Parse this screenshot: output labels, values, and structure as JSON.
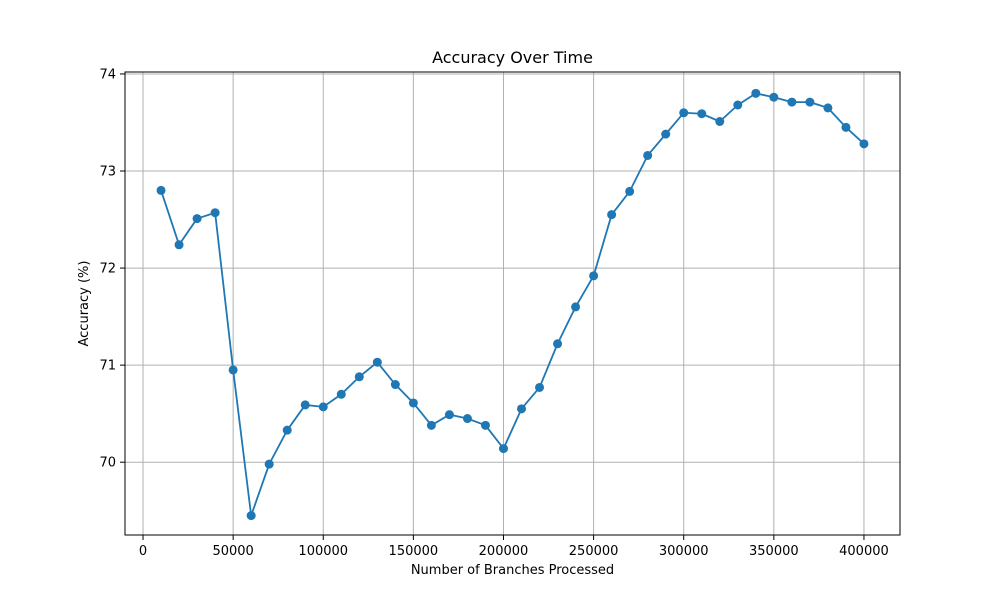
{
  "chart_data": {
    "type": "line",
    "title": "Accuracy Over Time",
    "xlabel": "Number of Branches Processed",
    "ylabel": "Accuracy (%)",
    "xlim": [
      -10000,
      420000
    ],
    "ylim": [
      69.25,
      74.02
    ],
    "xticks": [
      0,
      50000,
      100000,
      150000,
      200000,
      250000,
      300000,
      350000,
      400000
    ],
    "xtick_labels": [
      "0",
      "50000",
      "100000",
      "150000",
      "200000",
      "250000",
      "300000",
      "350000",
      "400000"
    ],
    "yticks": [
      70,
      71,
      72,
      73,
      74
    ],
    "ytick_labels": [
      "70",
      "71",
      "72",
      "73",
      "74"
    ],
    "grid": true,
    "legend": false,
    "marker": "circle",
    "color": "#1f77b4",
    "series": [
      {
        "x": [
          10000,
          20000,
          30000,
          40000,
          50000,
          60000,
          70000,
          80000,
          90000,
          100000,
          110000,
          120000,
          130000,
          140000,
          150000,
          160000,
          170000,
          180000,
          190000,
          200000,
          210000,
          220000,
          230000,
          240000,
          250000,
          260000,
          270000,
          280000,
          290000,
          300000,
          310000,
          320000,
          330000,
          340000,
          350000,
          360000,
          370000,
          380000,
          390000,
          400000
        ],
        "values": [
          72.8,
          72.24,
          72.51,
          72.57,
          70.95,
          69.45,
          69.98,
          70.33,
          70.59,
          70.57,
          70.7,
          70.88,
          71.03,
          70.8,
          70.61,
          70.38,
          70.49,
          70.45,
          70.38,
          70.14,
          70.55,
          70.77,
          71.22,
          71.6,
          71.92,
          72.55,
          72.79,
          73.16,
          73.38,
          73.6,
          73.59,
          73.51,
          73.68,
          73.8,
          73.76,
          73.71,
          73.71,
          73.65,
          73.45,
          73.28
        ]
      }
    ]
  }
}
